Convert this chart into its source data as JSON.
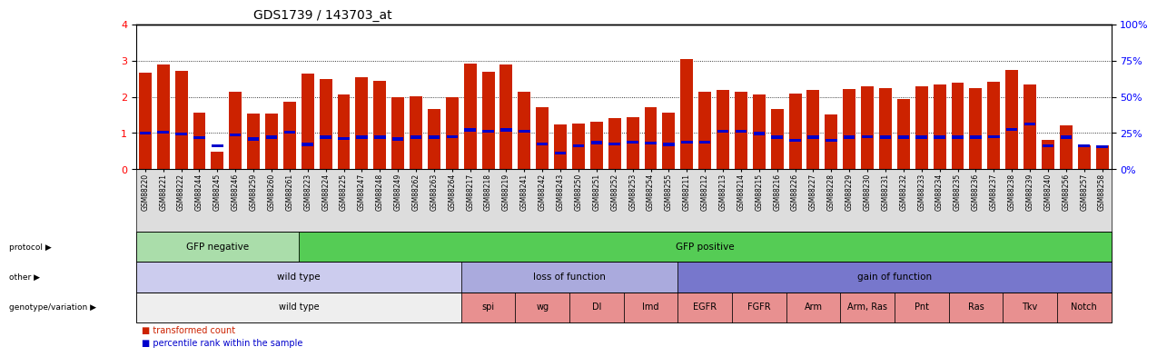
{
  "title": "GDS1739 / 143703_at",
  "samples": [
    "GSM88220",
    "GSM88221",
    "GSM88222",
    "GSM88244",
    "GSM88245",
    "GSM88246",
    "GSM88259",
    "GSM88260",
    "GSM88261",
    "GSM88223",
    "GSM88224",
    "GSM88225",
    "GSM88247",
    "GSM88248",
    "GSM88249",
    "GSM88262",
    "GSM88263",
    "GSM88264",
    "GSM88217",
    "GSM88218",
    "GSM88219",
    "GSM88241",
    "GSM88242",
    "GSM88243",
    "GSM88250",
    "GSM88251",
    "GSM88252",
    "GSM88253",
    "GSM88254",
    "GSM88255",
    "GSM88211",
    "GSM88212",
    "GSM88213",
    "GSM88214",
    "GSM88215",
    "GSM88216",
    "GSM88226",
    "GSM88227",
    "GSM88228",
    "GSM88229",
    "GSM88230",
    "GSM88231",
    "GSM88232",
    "GSM88233",
    "GSM88234",
    "GSM88235",
    "GSM88236",
    "GSM88237",
    "GSM88238",
    "GSM88239",
    "GSM88240",
    "GSM88256",
    "GSM88257",
    "GSM88258"
  ],
  "red_values": [
    2.67,
    2.9,
    2.72,
    1.56,
    0.48,
    2.13,
    1.54,
    1.54,
    1.85,
    2.63,
    2.5,
    2.07,
    2.55,
    2.43,
    1.99,
    2.02,
    1.67,
    1.99,
    2.92,
    2.7,
    2.9,
    2.15,
    1.7,
    1.23,
    1.27,
    1.3,
    1.4,
    1.43,
    1.7,
    1.55,
    3.05,
    2.15,
    2.2,
    2.13,
    2.07,
    1.65,
    2.1,
    2.2,
    1.5,
    2.22,
    2.3,
    2.23,
    1.95,
    2.3,
    2.35,
    2.4,
    2.25,
    2.42,
    2.75,
    2.35,
    0.8,
    1.22,
    0.65,
    0.65
  ],
  "blue_values": [
    1.0,
    1.02,
    0.97,
    0.87,
    0.65,
    0.95,
    0.83,
    0.88,
    1.02,
    0.68,
    0.88,
    0.85,
    0.88,
    0.88,
    0.83,
    0.88,
    0.88,
    0.9,
    1.08,
    1.05,
    1.08,
    1.05,
    0.7,
    0.45,
    0.65,
    0.73,
    0.7,
    0.75,
    0.72,
    0.68,
    0.75,
    0.75,
    1.05,
    1.05,
    0.98,
    0.88,
    0.8,
    0.88,
    0.8,
    0.88,
    0.9,
    0.88,
    0.88,
    0.88,
    0.88,
    0.88,
    0.88,
    0.9,
    1.1,
    1.25,
    0.65,
    0.88,
    0.65,
    0.62
  ],
  "ylim": [
    0,
    4
  ],
  "yticks_left": [
    0,
    1,
    2,
    3,
    4
  ],
  "yticks_right": [
    0,
    25,
    50,
    75,
    100
  ],
  "protocol_groups": [
    {
      "label": "GFP negative",
      "start": 0,
      "end": 9,
      "color": "#aaddaa"
    },
    {
      "label": "GFP positive",
      "start": 9,
      "end": 54,
      "color": "#55cc55"
    }
  ],
  "other_groups": [
    {
      "label": "wild type",
      "start": 0,
      "end": 18,
      "color": "#ccccee"
    },
    {
      "label": "loss of function",
      "start": 18,
      "end": 30,
      "color": "#aaaadd"
    },
    {
      "label": "gain of function",
      "start": 30,
      "end": 54,
      "color": "#7777cc"
    }
  ],
  "genotype_groups": [
    {
      "label": "wild type",
      "start": 0,
      "end": 18,
      "color": "#eeeeee"
    },
    {
      "label": "spi",
      "start": 18,
      "end": 21,
      "color": "#e89090"
    },
    {
      "label": "wg",
      "start": 21,
      "end": 24,
      "color": "#e89090"
    },
    {
      "label": "Dl",
      "start": 24,
      "end": 27,
      "color": "#e89090"
    },
    {
      "label": "Imd",
      "start": 27,
      "end": 30,
      "color": "#e89090"
    },
    {
      "label": "EGFR",
      "start": 30,
      "end": 33,
      "color": "#e89090"
    },
    {
      "label": "FGFR",
      "start": 33,
      "end": 36,
      "color": "#e89090"
    },
    {
      "label": "Arm",
      "start": 36,
      "end": 39,
      "color": "#e89090"
    },
    {
      "label": "Arm, Ras",
      "start": 39,
      "end": 42,
      "color": "#e89090"
    },
    {
      "label": "Pnt",
      "start": 42,
      "end": 45,
      "color": "#e89090"
    },
    {
      "label": "Ras",
      "start": 45,
      "end": 48,
      "color": "#e89090"
    },
    {
      "label": "Tkv",
      "start": 48,
      "end": 51,
      "color": "#e89090"
    },
    {
      "label": "Notch",
      "start": 51,
      "end": 54,
      "color": "#e89090"
    }
  ],
  "bar_color": "#cc2200",
  "blue_color": "#0000cc",
  "tick_bg_color": "#dddddd"
}
